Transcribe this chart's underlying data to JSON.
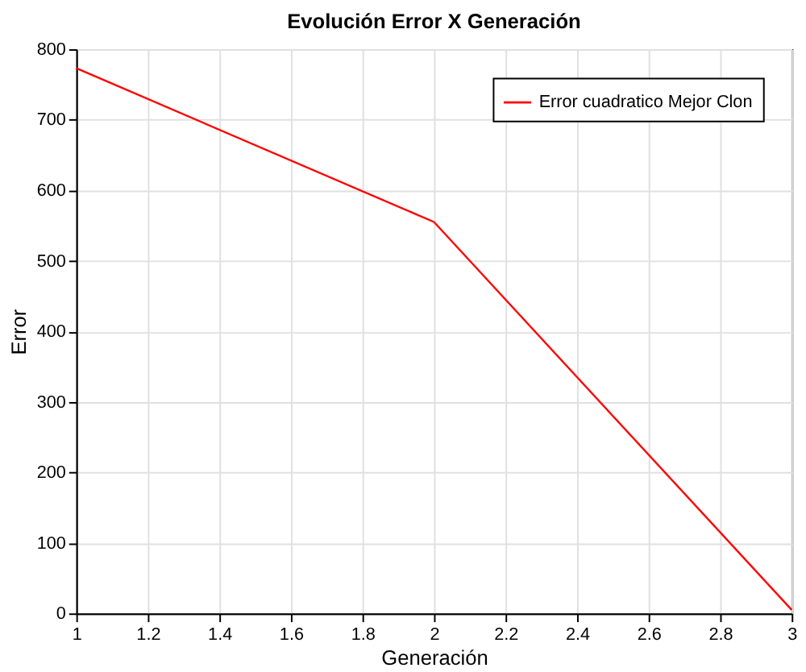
{
  "chart_data": {
    "type": "line",
    "title": "Evolución Error X Generación",
    "xlabel": "Generación",
    "ylabel": "Error",
    "x": [
      1,
      2,
      3
    ],
    "series": [
      {
        "name": "Error cuadratico Mejor Clon",
        "color": "#ff0000",
        "values": [
          773,
          555,
          5
        ]
      }
    ],
    "xlim": [
      1,
      3
    ],
    "xticks": [
      1,
      1.2,
      1.4,
      1.6,
      1.8,
      2,
      2.2,
      2.4,
      2.6,
      2.8,
      3
    ],
    "ylim": [
      0,
      800
    ],
    "yticks": [
      0,
      100,
      200,
      300,
      400,
      500,
      600,
      700,
      800
    ],
    "grid": true,
    "legend": "top right",
    "marker": "none",
    "line_style": "solid"
  }
}
